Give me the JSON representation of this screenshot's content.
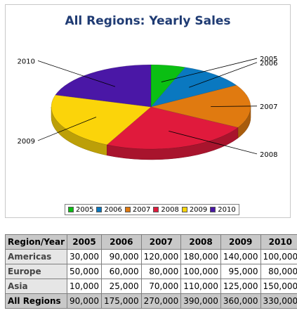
{
  "chart_data": {
    "type": "pie",
    "title": "All Regions: Yearly Sales",
    "categories": [
      "2005",
      "2006",
      "2007",
      "2008",
      "2009",
      "2010"
    ],
    "values": [
      90000,
      175000,
      270000,
      390000,
      360000,
      330000
    ],
    "legend_position": "bottom",
    "colors": [
      "#0bbf13",
      "#0a78c0",
      "#e07a10",
      "#e01a3c",
      "#fbd40a",
      "#4a17a6"
    ]
  },
  "table": {
    "header": [
      "Region/Year",
      "2005",
      "2006",
      "2007",
      "2008",
      "2009",
      "2010"
    ],
    "rows": [
      {
        "label": "Americas",
        "cells": [
          "30,000",
          "90,000",
          "120,000",
          "180,000",
          "140,000",
          "100,000"
        ]
      },
      {
        "label": "Europe",
        "cells": [
          "50,000",
          "60,000",
          "80,000",
          "100,000",
          "95,000",
          "80,000"
        ]
      },
      {
        "label": "Asia",
        "cells": [
          "10,000",
          "25,000",
          "70,000",
          "110,000",
          "125,000",
          "150,000"
        ]
      },
      {
        "label": "All Regions",
        "cells": [
          "90,000",
          "175,000",
          "270,000",
          "390,000",
          "360,000",
          "330,000"
        ]
      }
    ]
  }
}
